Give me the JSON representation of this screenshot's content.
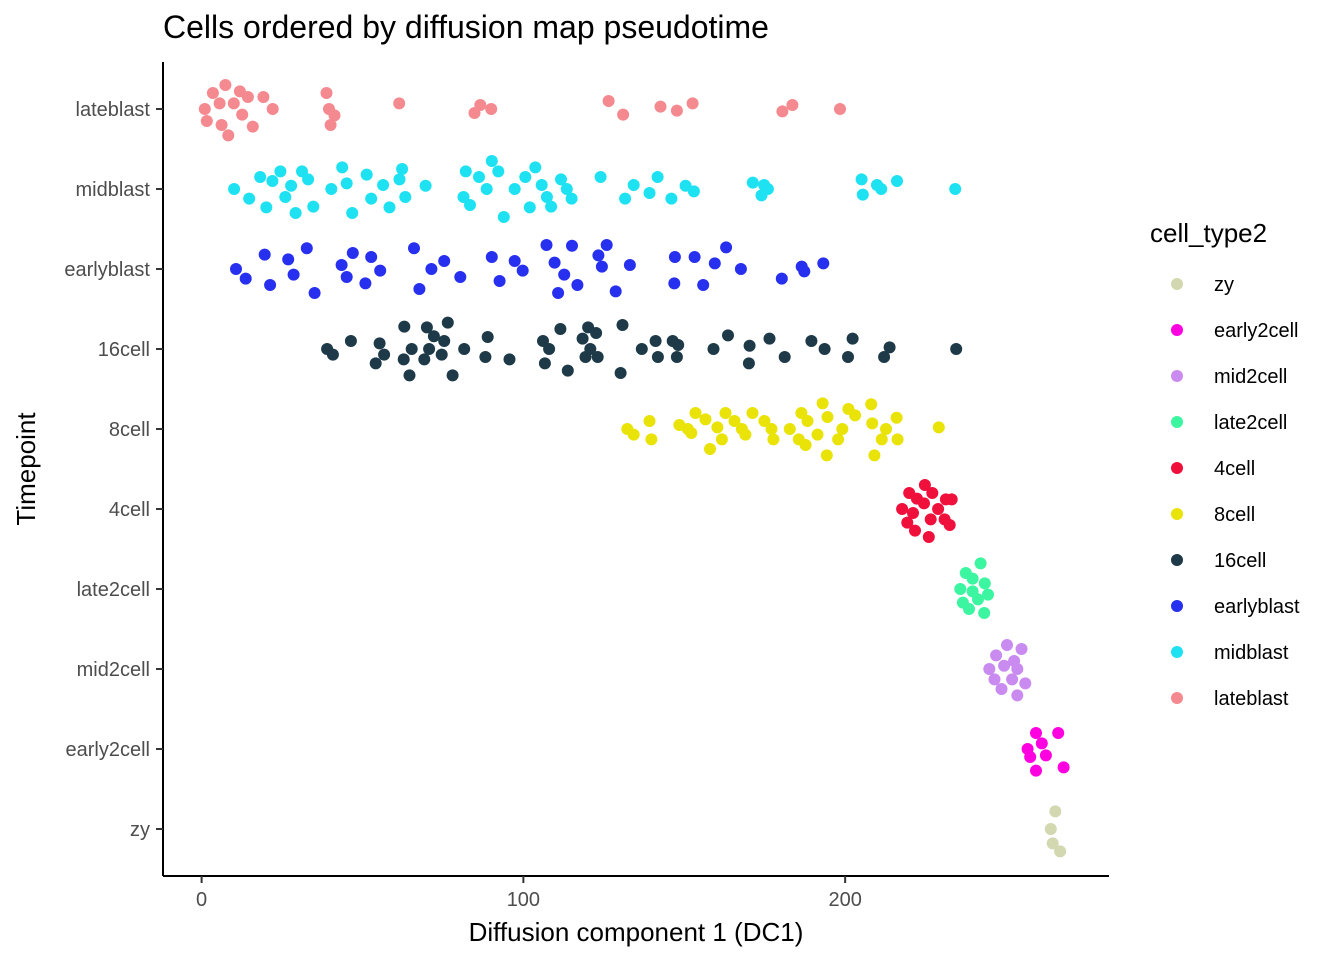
{
  "chart_data": {
    "type": "scatter",
    "title": "Cells ordered by diffusion map pseudotime",
    "xlabel": "Diffusion component 1 (DC1)",
    "ylabel": "Timepoint",
    "xlim": [
      -12,
      282
    ],
    "x_ticks": [
      0,
      100,
      200
    ],
    "categories": [
      "zy",
      "early2cell",
      "mid2cell",
      "late2cell",
      "4cell",
      "8cell",
      "16cell",
      "earlyblast",
      "midblast",
      "lateblast"
    ],
    "grid": false,
    "legend": {
      "title": "cell_type2",
      "position": "right",
      "entries": [
        "zy",
        "early2cell",
        "mid2cell",
        "late2cell",
        "4cell",
        "8cell",
        "16cell",
        "earlyblast",
        "midblast",
        "lateblast"
      ]
    },
    "colors": {
      "zy": "#d3d8b0",
      "early2cell": "#ff00e0",
      "mid2cell": "#c98bf0",
      "late2cell": "#3cf5a0",
      "4cell": "#f0103c",
      "8cell": "#e9e308",
      "16cell": "#1e3a48",
      "earlyblast": "#2830f0",
      "midblast": "#1ee2f2",
      "lateblast": "#f48a90"
    },
    "series": [
      {
        "name": "zy",
        "y": "zy",
        "points": [
          [
            265.3,
            0.22
          ],
          [
            263.9,
            0.0
          ],
          [
            264.5,
            -0.18
          ],
          [
            266.8,
            -0.28
          ]
        ]
      },
      {
        "name": "early2cell",
        "y": "early2cell",
        "points": [
          [
            259.3,
            0.2
          ],
          [
            266.2,
            0.2
          ],
          [
            256.7,
            0.0
          ],
          [
            261.1,
            0.07
          ],
          [
            262.4,
            -0.08
          ],
          [
            257.5,
            -0.1
          ],
          [
            267.9,
            -0.23
          ],
          [
            259.3,
            -0.27
          ]
        ]
      },
      {
        "name": "mid2cell",
        "y": "mid2cell",
        "points": [
          [
            250.3,
            0.3
          ],
          [
            254.8,
            0.25
          ],
          [
            246.9,
            0.17
          ],
          [
            252.5,
            0.1
          ],
          [
            244.8,
            0.0
          ],
          [
            249.4,
            0.04
          ],
          [
            253.5,
            0.0
          ],
          [
            246.4,
            -0.13
          ],
          [
            251.9,
            -0.13
          ],
          [
            256.0,
            -0.18
          ],
          [
            248.6,
            -0.25
          ],
          [
            253.5,
            -0.33
          ]
        ]
      },
      {
        "name": "late2cell",
        "y": "late2cell",
        "points": [
          [
            242.1,
            0.32
          ],
          [
            237.5,
            0.2
          ],
          [
            239.6,
            0.13
          ],
          [
            243.4,
            0.07
          ],
          [
            235.8,
            0.0
          ],
          [
            239.6,
            -0.03
          ],
          [
            244.4,
            -0.07
          ],
          [
            236.6,
            -0.17
          ],
          [
            241.3,
            -0.13
          ],
          [
            238.5,
            -0.25
          ],
          [
            243.2,
            -0.3
          ]
        ]
      },
      {
        "name": "4cell",
        "y": "4cell",
        "points": [
          [
            224.8,
            0.3
          ],
          [
            219.9,
            0.2
          ],
          [
            227.1,
            0.2
          ],
          [
            231.3,
            0.12
          ],
          [
            222.3,
            0.13
          ],
          [
            217.7,
            0.0
          ],
          [
            224.5,
            0.07
          ],
          [
            228.9,
            0.0
          ],
          [
            221.1,
            -0.05
          ],
          [
            233.1,
            0.12
          ],
          [
            219.3,
            -0.17
          ],
          [
            226.6,
            -0.13
          ],
          [
            230.9,
            -0.13
          ],
          [
            232.5,
            -0.2
          ],
          [
            221.7,
            -0.27
          ],
          [
            226.0,
            -0.35
          ]
        ]
      },
      {
        "name": "8cell",
        "y": "8cell",
        "points": [
          [
            132.3,
            0.0
          ],
          [
            134.3,
            -0.07
          ],
          [
            139.2,
            0.1
          ],
          [
            139.8,
            -0.13
          ],
          [
            148.5,
            0.05
          ],
          [
            151.1,
            0.0
          ],
          [
            153.5,
            0.2
          ],
          [
            156.6,
            0.12
          ],
          [
            152.2,
            -0.05
          ],
          [
            160.3,
            0.02
          ],
          [
            158.0,
            -0.25
          ],
          [
            162.8,
            0.2
          ],
          [
            161.7,
            -0.13
          ],
          [
            165.6,
            0.1
          ],
          [
            167.9,
            0.0
          ],
          [
            169.0,
            -0.07
          ],
          [
            171.2,
            0.2
          ],
          [
            174.9,
            0.1
          ],
          [
            177.7,
            -0.13
          ],
          [
            177.1,
            0.0
          ],
          [
            182.8,
            0.0
          ],
          [
            185.6,
            -0.13
          ],
          [
            186.4,
            0.2
          ],
          [
            188.3,
            0.1
          ],
          [
            187.7,
            -0.2
          ],
          [
            191.4,
            -0.07
          ],
          [
            193.0,
            0.32
          ],
          [
            194.5,
            0.15
          ],
          [
            194.3,
            -0.33
          ],
          [
            199.1,
            0.0
          ],
          [
            197.8,
            -0.13
          ],
          [
            201.0,
            0.25
          ],
          [
            203.1,
            0.17
          ],
          [
            208.1,
            0.31
          ],
          [
            209.1,
            -0.33
          ],
          [
            208.4,
            0.07
          ],
          [
            212.7,
            0.0
          ],
          [
            211.4,
            -0.13
          ],
          [
            216.0,
            0.14
          ],
          [
            216.3,
            -0.13
          ],
          [
            229.1,
            0.02
          ]
        ]
      },
      {
        "name": "16cell",
        "y": "16cell",
        "points": [
          [
            39.0,
            0.0
          ],
          [
            40.8,
            -0.07
          ],
          [
            46.4,
            0.1
          ],
          [
            54.1,
            -0.18
          ],
          [
            55.3,
            0.07
          ],
          [
            56.7,
            -0.07
          ],
          [
            63.0,
            0.28
          ],
          [
            65.3,
            0.0
          ],
          [
            62.8,
            -0.13
          ],
          [
            64.6,
            -0.33
          ],
          [
            70.0,
            0.27
          ],
          [
            70.7,
            0.0
          ],
          [
            69.2,
            -0.13
          ],
          [
            72.2,
            0.16
          ],
          [
            74.6,
            -0.07
          ],
          [
            76.5,
            0.33
          ],
          [
            75.4,
            0.1
          ],
          [
            78.0,
            -0.33
          ],
          [
            81.6,
            0.0
          ],
          [
            88.9,
            0.15
          ],
          [
            88.2,
            -0.1
          ],
          [
            95.7,
            -0.13
          ],
          [
            106.1,
            0.1
          ],
          [
            108.0,
            0.0
          ],
          [
            106.7,
            -0.18
          ],
          [
            111.5,
            0.25
          ],
          [
            113.8,
            -0.27
          ],
          [
            118.4,
            0.13
          ],
          [
            119.3,
            -0.1
          ],
          [
            120.1,
            0.27
          ],
          [
            120.8,
            0.0
          ],
          [
            122.6,
            0.2
          ],
          [
            123.1,
            -0.1
          ],
          [
            130.8,
            0.3
          ],
          [
            130.2,
            -0.3
          ],
          [
            136.8,
            0.0
          ],
          [
            141.1,
            0.1
          ],
          [
            141.8,
            -0.1
          ],
          [
            146.4,
            0.1
          ],
          [
            148.1,
            0.05
          ],
          [
            147.7,
            -0.1
          ],
          [
            159.1,
            0.0
          ],
          [
            163.6,
            0.17
          ],
          [
            170.3,
            0.04
          ],
          [
            170.1,
            -0.18
          ],
          [
            176.5,
            0.13
          ],
          [
            181.2,
            -0.1
          ],
          [
            189.5,
            0.1
          ],
          [
            193.6,
            0.0
          ],
          [
            200.9,
            -0.1
          ],
          [
            202.3,
            0.13
          ],
          [
            212.1,
            -0.1
          ],
          [
            213.8,
            0.02
          ],
          [
            234.5,
            0.0
          ]
        ]
      },
      {
        "name": "earlyblast",
        "y": "earlyblast",
        "points": [
          [
            10.7,
            0.0
          ],
          [
            13.7,
            -0.12
          ],
          [
            19.6,
            0.18
          ],
          [
            21.3,
            -0.2
          ],
          [
            26.9,
            0.12
          ],
          [
            28.6,
            -0.07
          ],
          [
            32.7,
            0.26
          ],
          [
            35.1,
            -0.3
          ],
          [
            43.5,
            0.05
          ],
          [
            45.1,
            -0.1
          ],
          [
            47.0,
            0.2
          ],
          [
            50.9,
            -0.18
          ],
          [
            52.7,
            0.15
          ],
          [
            55.5,
            -0.02
          ],
          [
            66.0,
            0.26
          ],
          [
            67.7,
            -0.25
          ],
          [
            71.4,
            0.0
          ],
          [
            75.4,
            0.1
          ],
          [
            80.4,
            -0.1
          ],
          [
            90.2,
            0.15
          ],
          [
            92.6,
            -0.15
          ],
          [
            97.3,
            0.1
          ],
          [
            99.8,
            -0.02
          ],
          [
            107.2,
            0.3
          ],
          [
            109.7,
            0.08
          ],
          [
            110.8,
            -0.3
          ],
          [
            112.7,
            -0.07
          ],
          [
            115.1,
            0.29
          ],
          [
            116.8,
            -0.2
          ],
          [
            123.3,
            0.17
          ],
          [
            124.4,
            0.03
          ],
          [
            125.9,
            0.3
          ],
          [
            128.7,
            -0.28
          ],
          [
            133.1,
            0.05
          ],
          [
            147.1,
            0.15
          ],
          [
            146.9,
            -0.18
          ],
          [
            153.2,
            0.15
          ],
          [
            155.9,
            -0.2
          ],
          [
            159.5,
            0.07
          ],
          [
            163.0,
            0.27
          ],
          [
            167.6,
            0.0
          ],
          [
            180.3,
            -0.12
          ],
          [
            186.5,
            0.03
          ],
          [
            187.3,
            -0.03
          ],
          [
            193.2,
            0.07
          ]
        ]
      },
      {
        "name": "midblast",
        "y": "midblast",
        "points": [
          [
            10.1,
            0.0
          ],
          [
            14.8,
            -0.12
          ],
          [
            18.2,
            0.15
          ],
          [
            20.1,
            -0.23
          ],
          [
            22.0,
            0.1
          ],
          [
            24.5,
            0.22
          ],
          [
            26.0,
            -0.1
          ],
          [
            27.8,
            0.04
          ],
          [
            29.2,
            -0.3
          ],
          [
            31.2,
            0.22
          ],
          [
            33.1,
            0.12
          ],
          [
            34.7,
            -0.22
          ],
          [
            40.3,
            0.0
          ],
          [
            43.7,
            0.27
          ],
          [
            45.1,
            0.07
          ],
          [
            46.8,
            -0.3
          ],
          [
            51.3,
            0.18
          ],
          [
            52.7,
            -0.12
          ],
          [
            56.4,
            0.05
          ],
          [
            58.4,
            -0.23
          ],
          [
            61.5,
            0.12
          ],
          [
            62.3,
            0.25
          ],
          [
            63.3,
            -0.1
          ],
          [
            69.6,
            0.04
          ],
          [
            81.4,
            -0.1
          ],
          [
            82.1,
            0.22
          ],
          [
            83.4,
            -0.2
          ],
          [
            86.2,
            0.15
          ],
          [
            88.6,
            0.0
          ],
          [
            90.2,
            0.35
          ],
          [
            92.2,
            0.22
          ],
          [
            93.9,
            -0.35
          ],
          [
            97.3,
            0.0
          ],
          [
            100.6,
            0.15
          ],
          [
            102.0,
            -0.23
          ],
          [
            103.7,
            0.27
          ],
          [
            105.7,
            0.05
          ],
          [
            107.3,
            -0.1
          ],
          [
            108.6,
            -0.22
          ],
          [
            111.7,
            0.12
          ],
          [
            113.5,
            0.0
          ],
          [
            115.0,
            -0.12
          ],
          [
            124.0,
            0.15
          ],
          [
            131.6,
            -0.12
          ],
          [
            134.3,
            0.05
          ],
          [
            139.2,
            -0.05
          ],
          [
            141.7,
            0.15
          ],
          [
            146.0,
            -0.12
          ],
          [
            150.4,
            0.04
          ],
          [
            153.0,
            -0.03
          ],
          [
            171.3,
            0.08
          ],
          [
            174.0,
            -0.08
          ],
          [
            174.8,
            0.05
          ],
          [
            176.0,
            0.0
          ],
          [
            205.1,
            0.12
          ],
          [
            205.5,
            -0.07
          ],
          [
            209.9,
            0.05
          ],
          [
            211.2,
            0.0
          ],
          [
            216.1,
            0.1
          ],
          [
            234.2,
            0.0
          ]
        ]
      },
      {
        "name": "lateblast",
        "y": "lateblast",
        "points": [
          [
            1.0,
            0.0
          ],
          [
            1.6,
            -0.15
          ],
          [
            3.5,
            0.2
          ],
          [
            5.6,
            0.07
          ],
          [
            6.2,
            -0.2
          ],
          [
            7.4,
            0.3
          ],
          [
            8.3,
            -0.33
          ],
          [
            10.0,
            0.07
          ],
          [
            11.9,
            0.22
          ],
          [
            12.6,
            -0.07
          ],
          [
            14.4,
            0.15
          ],
          [
            15.9,
            -0.22
          ],
          [
            19.2,
            0.15
          ],
          [
            22.1,
            0.0
          ],
          [
            38.8,
            0.2
          ],
          [
            39.6,
            0.0
          ],
          [
            40.1,
            -0.2
          ],
          [
            41.3,
            -0.08
          ],
          [
            61.4,
            0.07
          ],
          [
            84.8,
            -0.05
          ],
          [
            86.6,
            0.05
          ],
          [
            90.0,
            0.0
          ],
          [
            126.5,
            0.1
          ],
          [
            131.0,
            -0.07
          ],
          [
            142.6,
            0.03
          ],
          [
            147.7,
            -0.02
          ],
          [
            152.6,
            0.07
          ],
          [
            180.5,
            -0.03
          ],
          [
            183.6,
            0.05
          ],
          [
            198.4,
            0.0
          ]
        ]
      }
    ]
  }
}
